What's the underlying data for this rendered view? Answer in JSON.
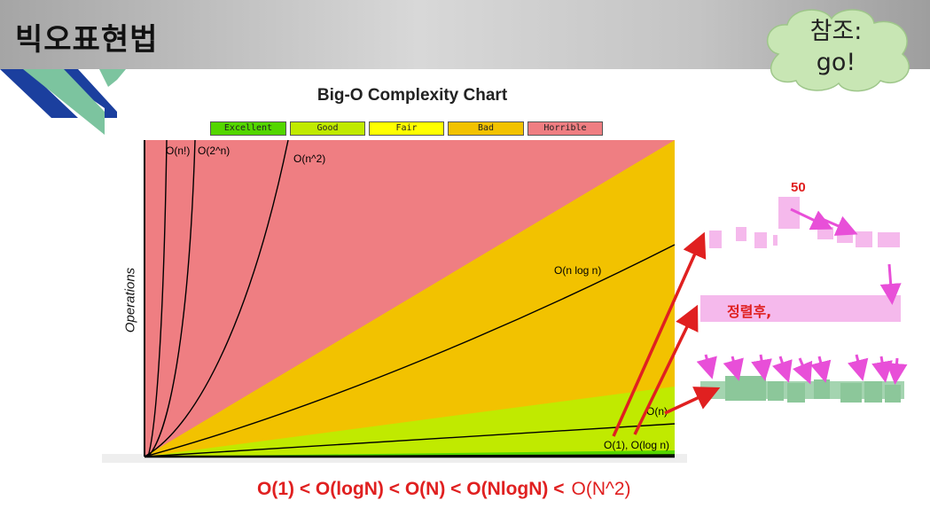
{
  "slide": {
    "title": "빅오표현법",
    "cloud_note": "참조:\ngo!"
  },
  "chart_data": {
    "type": "area",
    "title": "Big-O Complexity Chart",
    "xlabel": "",
    "ylabel": "Operations",
    "legend": [
      {
        "label": "Excellent",
        "color": "#53d600"
      },
      {
        "label": "Good",
        "color": "#c0ea00"
      },
      {
        "label": "Fair",
        "color": "#ffff00"
      },
      {
        "label": "Bad",
        "color": "#f2c200"
      },
      {
        "label": "Horrible",
        "color": "#ef7e82"
      }
    ],
    "zones": [
      "Excellent",
      "Good",
      "Bad",
      "Horrible"
    ],
    "curves": [
      "O(n!)",
      "O(2^n)",
      "O(n^2)",
      "O(n log n)",
      "O(n)",
      "O(1), O(log n)"
    ],
    "grid": false,
    "legend_position": "top"
  },
  "annotations": {
    "highlighted_value": "50",
    "sorted_label": "정렬후,",
    "formula_main": "O(1) < O(logN) < O(N) < O(NlogN) <",
    "formula_last": "O(N^2)",
    "arrow_color": "#e02020",
    "pink_arrow_color": "#e84fd8",
    "bar_color": "#f5b9ec",
    "sorted_bar_color": "#8cc79a"
  }
}
